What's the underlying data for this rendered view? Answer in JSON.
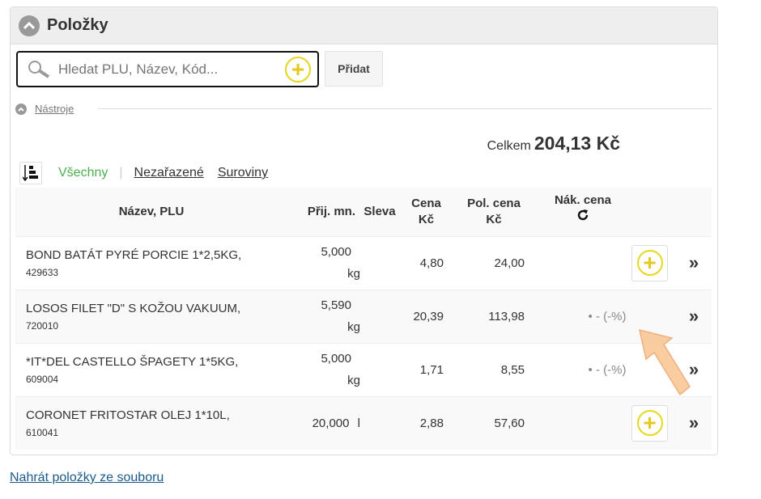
{
  "panel": {
    "title": "Položky",
    "icon": "chevron-up-circle-icon"
  },
  "search": {
    "placeholder": "Hledat PLU, Název, Kód...",
    "value": "",
    "add_label": "Přidat"
  },
  "tools": {
    "label": "Nástroje"
  },
  "total": {
    "label": "Celkem",
    "value": "204,13 Kč"
  },
  "filters": {
    "active": "Všechny",
    "items": [
      "Nezařazené",
      "Suroviny"
    ]
  },
  "table": {
    "headers": {
      "name": "Název, PLU",
      "qty": "Přij. mn.",
      "discount": "Sleva",
      "price": "Cena Kč",
      "total": "Pol. cena Kč",
      "purchase": "Nák. cena"
    },
    "rows": [
      {
        "name": "BOND BATÁT PYRÉ PORCIE 1*2,5KG,",
        "plu": "429633",
        "qty": "5,000",
        "unit": "kg",
        "price": "4,80",
        "total": "24,00",
        "purchase": "",
        "add": true
      },
      {
        "name": "LOSOS FILET \"D\" S KOŽOU VAKUUM,",
        "plu": "720010",
        "qty": "5,590",
        "unit": "kg",
        "price": "20,39",
        "total": "113,98",
        "purchase": "• - (-%)",
        "add": false
      },
      {
        "name": "*IT*DEL CASTELLO ŠPAGETY 1*5KG,",
        "plu": "609004",
        "qty": "5,000",
        "unit": "kg",
        "price": "1,71",
        "total": "8,55",
        "purchase": "• - (-%)",
        "add": false
      },
      {
        "name": "CORONET FRITOSTAR OLEJ 1*10L,",
        "plu": "610041",
        "qty": "20,000",
        "unit": "l",
        "price": "2,88",
        "total": "57,60",
        "purchase": "",
        "add": true
      }
    ]
  },
  "upload_link": "Nahrát položky ze souboru",
  "colors": {
    "accent_yellow": "#e8d61e",
    "active_green": "#4cae4c",
    "link_blue": "#1a5a8a",
    "annotation_arrow": "#f8c08a"
  }
}
